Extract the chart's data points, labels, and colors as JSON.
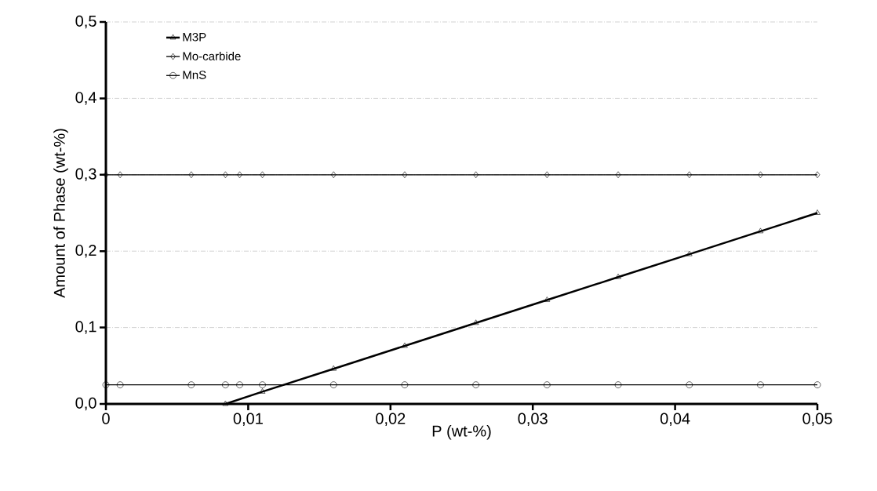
{
  "chart_data": {
    "type": "line",
    "xlabel": "P (wt-%)",
    "ylabel": "Amount of Phase (wt-%)",
    "xlim": [
      0,
      0.05
    ],
    "ylim": [
      0,
      0.5
    ],
    "xticks": [
      {
        "value": 0,
        "label": "0"
      },
      {
        "value": 0.01,
        "label": "0,01"
      },
      {
        "value": 0.02,
        "label": "0,02"
      },
      {
        "value": 0.03,
        "label": "0,03"
      },
      {
        "value": 0.04,
        "label": "0,04"
      },
      {
        "value": 0.05,
        "label": "0,05"
      }
    ],
    "yticks": [
      {
        "value": 0,
        "label": "0,0"
      },
      {
        "value": 0.1,
        "label": "0,1"
      },
      {
        "value": 0.2,
        "label": "0,2"
      },
      {
        "value": 0.3,
        "label": "0,3"
      },
      {
        "value": 0.4,
        "label": "0,4"
      },
      {
        "value": 0.5,
        "label": "0,5"
      }
    ],
    "grid": "y",
    "legend": "top left",
    "series": [
      {
        "name": "M3P",
        "color": "#000000",
        "marker": "triangle",
        "x": [
          0.0084,
          0.011,
          0.016,
          0.021,
          0.026,
          0.031,
          0.036,
          0.041,
          0.046,
          0.05
        ],
        "values": [
          0,
          0.016,
          0.046,
          0.076,
          0.106,
          0.136,
          0.166,
          0.196,
          0.226,
          0.25
        ]
      },
      {
        "name": "Mo-carbide",
        "color": "#000000",
        "marker": "diamond",
        "x": [
          0,
          0.001,
          0.006,
          0.0084,
          0.0094,
          0.011,
          0.016,
          0.021,
          0.026,
          0.031,
          0.036,
          0.041,
          0.046,
          0.05
        ],
        "values": [
          0.3,
          0.3,
          0.3,
          0.3,
          0.3,
          0.3,
          0.3,
          0.3,
          0.3,
          0.3,
          0.3,
          0.3,
          0.3,
          0.3
        ]
      },
      {
        "name": "MnS",
        "color": "#000000",
        "marker": "circle",
        "x": [
          0,
          0.001,
          0.006,
          0.0084,
          0.0094,
          0.011,
          0.016,
          0.021,
          0.026,
          0.031,
          0.036,
          0.041,
          0.046,
          0.05
        ],
        "values": [
          0.025,
          0.025,
          0.025,
          0.025,
          0.025,
          0.025,
          0.025,
          0.025,
          0.025,
          0.025,
          0.025,
          0.025,
          0.025,
          0.025
        ]
      }
    ]
  }
}
